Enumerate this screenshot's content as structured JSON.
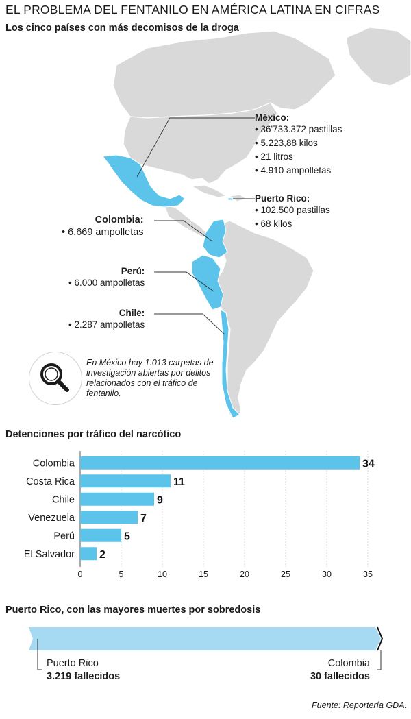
{
  "header": {
    "title": "EL PROBLEMA DEL FENTANILO EN AMÉRICA LATINA EN CIFRAS",
    "subtitle": "Los cinco países con más decomisos de la droga"
  },
  "map": {
    "highlight_color": "#5cc3ea",
    "land_color": "#d9d9d9",
    "countries": [
      {
        "name": "México:",
        "items": [
          "36'733.372 pastillas",
          "5.223,88 kilos",
          "21 litros",
          "4.910 ampolletas"
        ]
      },
      {
        "name": "Puerto Rico:",
        "items": [
          "102.500 pastillas",
          "68 kilos"
        ]
      },
      {
        "name": "Colombia:",
        "items": [
          "6.669 ampolletas"
        ]
      },
      {
        "name": "Perú:",
        "items": [
          "6.000 ampolletas"
        ]
      },
      {
        "name": "Chile:",
        "items": [
          "2.287 ampolletas"
        ]
      }
    ],
    "note": "En México hay 1.013 carpetas de investigación abiertas por delitos relacionados con el tráfico de fentanilo."
  },
  "bars": {
    "title": "Detenciones por tráfico del narcótico"
  },
  "chart_data": {
    "type": "bar",
    "orientation": "horizontal",
    "title": "Detenciones por tráfico del narcótico",
    "categories": [
      "Colombia",
      "Costa Rica",
      "Chile",
      "Venezuela",
      "Perú",
      "El Salvador"
    ],
    "values": [
      34,
      11,
      9,
      7,
      5,
      2
    ],
    "xlim": [
      0,
      35
    ],
    "xticks": [
      0,
      5,
      10,
      15,
      20,
      25,
      30,
      35
    ],
    "bar_color": "#5cc3ea",
    "grid": true
  },
  "overdose": {
    "title": "Puerto Rico, con las mayores muertes por sobredosis",
    "left_name": "Puerto Rico",
    "left_value": "3.219 fallecidos",
    "right_name": "Colombia",
    "right_value": "30 fallecidos",
    "bar_color": "#a6d9f2"
  },
  "footer": {
    "source": "Fuente: Reportería GDA."
  }
}
